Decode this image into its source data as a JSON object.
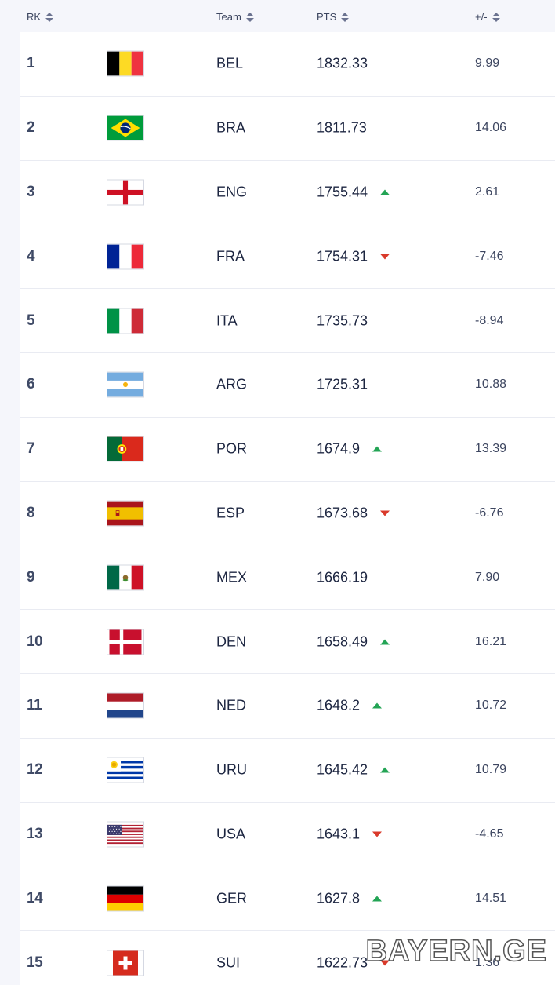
{
  "header": {
    "rank_label": "RK",
    "team_label": "Team",
    "pts_label": "PTS",
    "diff_label": "+/-"
  },
  "colors": {
    "trend_up": "#23a455",
    "trend_down": "#d93a2b"
  },
  "rows": [
    {
      "rank": "1",
      "team": "BEL",
      "pts": "1832.33",
      "trend": "",
      "diff": "9.99",
      "flag": "belgium-flag-icon"
    },
    {
      "rank": "2",
      "team": "BRA",
      "pts": "1811.73",
      "trend": "",
      "diff": "14.06",
      "flag": "brazil-flag-icon"
    },
    {
      "rank": "3",
      "team": "ENG",
      "pts": "1755.44",
      "trend": "up",
      "diff": "2.61",
      "flag": "england-flag-icon"
    },
    {
      "rank": "4",
      "team": "FRA",
      "pts": "1754.31",
      "trend": "down",
      "diff": "-7.46",
      "flag": "france-flag-icon"
    },
    {
      "rank": "5",
      "team": "ITA",
      "pts": "1735.73",
      "trend": "",
      "diff": "-8.94",
      "flag": "italy-flag-icon"
    },
    {
      "rank": "6",
      "team": "ARG",
      "pts": "1725.31",
      "trend": "",
      "diff": "10.88",
      "flag": "argentina-flag-icon"
    },
    {
      "rank": "7",
      "team": "POR",
      "pts": "1674.9",
      "trend": "up",
      "diff": "13.39",
      "flag": "portugal-flag-icon"
    },
    {
      "rank": "8",
      "team": "ESP",
      "pts": "1673.68",
      "trend": "down",
      "diff": "-6.76",
      "flag": "spain-flag-icon"
    },
    {
      "rank": "9",
      "team": "MEX",
      "pts": "1666.19",
      "trend": "",
      "diff": "7.90",
      "flag": "mexico-flag-icon"
    },
    {
      "rank": "10",
      "team": "DEN",
      "pts": "1658.49",
      "trend": "up",
      "diff": "16.21",
      "flag": "denmark-flag-icon"
    },
    {
      "rank": "11",
      "team": "NED",
      "pts": "1648.2",
      "trend": "up",
      "diff": "10.72",
      "flag": "netherlands-flag-icon"
    },
    {
      "rank": "12",
      "team": "URU",
      "pts": "1645.42",
      "trend": "up",
      "diff": "10.79",
      "flag": "uruguay-flag-icon"
    },
    {
      "rank": "13",
      "team": "USA",
      "pts": "1643.1",
      "trend": "down",
      "diff": "-4.65",
      "flag": "usa-flag-icon"
    },
    {
      "rank": "14",
      "team": "GER",
      "pts": "1627.8",
      "trend": "up",
      "diff": "14.51",
      "flag": "germany-flag-icon"
    },
    {
      "rank": "15",
      "team": "SUI",
      "pts": "1622.73",
      "trend": "down",
      "diff": "1.36",
      "flag": "switzerland-flag-icon"
    }
  ],
  "watermark": {
    "text": "BAYERN.GE"
  }
}
